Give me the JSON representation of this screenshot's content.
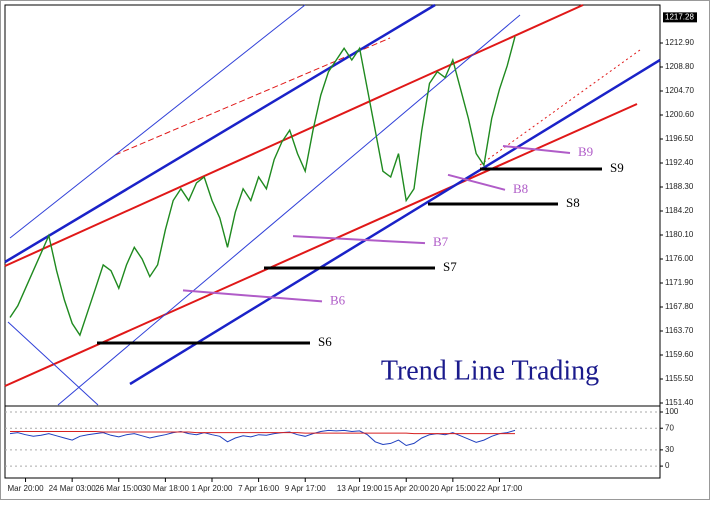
{
  "chart_data": [
    {
      "type": "line",
      "title": "Trend Line Trading",
      "ylim": [
        1151.06,
        1219.39
      ],
      "yticks": [
        {
          "value": 1151.4,
          "label": "1151.40"
        },
        {
          "value": 1155.5,
          "label": "1155.50"
        },
        {
          "value": 1159.6,
          "label": "1159.60"
        },
        {
          "value": 1163.7,
          "label": "1163.70"
        },
        {
          "value": 1167.8,
          "label": "1167.80"
        },
        {
          "value": 1171.9,
          "label": "1171.90"
        },
        {
          "value": 1176,
          "label": "1176.00"
        },
        {
          "value": 1180.1,
          "label": "1180.10"
        },
        {
          "value": 1184.2,
          "label": "1184.20"
        },
        {
          "value": 1188.3,
          "label": "1188.30"
        },
        {
          "value": 1192.4,
          "label": "1192.40"
        },
        {
          "value": 1196.5,
          "label": "1196.50"
        },
        {
          "value": 1200.6,
          "label": "1200.60"
        },
        {
          "value": 1204.7,
          "label": "1204.70"
        },
        {
          "value": 1208.8,
          "label": "1208.80"
        },
        {
          "value": 1212.9,
          "label": "1212.90"
        }
      ],
      "last_price": {
        "value": 1217.28,
        "label": "1217.28"
      },
      "categories": [
        null,
        null,
        "Mar 20:00",
        null,
        null,
        null,
        null,
        null,
        "24 Mar 03:00",
        null,
        null,
        null,
        null,
        null,
        "26 Mar 15:00",
        null,
        null,
        null,
        null,
        null,
        "30 Mar 18:00",
        null,
        null,
        null,
        null,
        null,
        "1 Apr 20:00",
        null,
        null,
        null,
        null,
        null,
        "7 Apr 16:00",
        null,
        null,
        null,
        null,
        null,
        "9 Apr 17:00",
        null,
        null,
        null,
        null,
        null,
        null,
        "13 Apr 19:00",
        null,
        null,
        null,
        null,
        null,
        "15 Apr 20:00",
        null,
        null,
        null,
        null,
        null,
        "20 Apr 15:00",
        null,
        null,
        null,
        null,
        null,
        "22 Apr 17:00",
        null,
        null
      ],
      "series": [
        {
          "color": "#1f8a1f",
          "values": [
            1166,
            1168,
            1171,
            1174,
            1177,
            1180,
            1174,
            1169,
            1165,
            1163,
            1167,
            1171,
            1175,
            1174,
            1171,
            1175,
            1178,
            1176,
            1173,
            1175,
            1181,
            1186,
            1188,
            1186,
            1189,
            1190,
            1186,
            1183,
            1178,
            1184,
            1188,
            1186,
            1190,
            1188,
            1193,
            1196,
            1198,
            1194,
            1191,
            1198,
            1204,
            1208,
            1210,
            1212,
            1210,
            1212,
            1205,
            1198,
            1191,
            1190,
            1194,
            1186,
            1188,
            1198,
            1206,
            1208,
            1207,
            1210,
            1205,
            1200,
            1194,
            1192,
            1200,
            1205,
            1209,
            1214
          ]
        }
      ],
      "annotations": [
        {
          "label": "S6",
          "value": 1161.65,
          "color": "#000000"
        },
        {
          "label": "S7",
          "value": 1174.46,
          "color": "#000000"
        },
        {
          "label": "S8",
          "value": 1185.4,
          "color": "#000000"
        },
        {
          "label": "S9",
          "value": 1191.38,
          "color": "#000000"
        },
        {
          "label": "B6",
          "value": 1169.7,
          "color": "#b05cc8"
        },
        {
          "label": "B7",
          "value": 1179.3,
          "color": "#b05cc8"
        },
        {
          "label": "B8",
          "value": 1189.1,
          "color": "#b05cc8"
        },
        {
          "label": "B9",
          "value": 1194.7,
          "color": "#b05cc8"
        }
      ]
    },
    {
      "type": "line",
      "ylim": [
        -22,
        107.4
      ],
      "yticks": [
        0,
        30,
        70,
        100
      ],
      "series": [
        {
          "color": "#1f3fbf",
          "values": [
            60,
            62,
            58,
            55,
            57,
            60,
            56,
            52,
            48,
            55,
            58,
            60,
            62,
            57,
            54,
            58,
            60,
            56,
            52,
            55,
            58,
            62,
            64,
            60,
            58,
            62,
            58,
            55,
            45,
            52,
            56,
            54,
            58,
            57,
            60,
            62,
            63,
            58,
            55,
            60,
            64,
            66,
            65,
            66,
            64,
            65,
            58,
            45,
            40,
            42,
            48,
            38,
            42,
            52,
            58,
            60,
            58,
            62,
            56,
            50,
            44,
            48,
            55,
            60,
            62,
            66
          ]
        },
        {
          "color": "#d62020",
          "values": [
            64,
            64,
            64,
            64,
            64,
            64,
            64,
            64,
            64,
            64,
            64,
            64,
            63,
            63,
            63,
            63,
            63,
            63,
            63,
            63,
            63,
            63,
            63,
            63,
            62,
            62,
            62,
            62,
            62,
            62,
            62,
            62,
            62,
            62,
            62,
            62,
            62,
            62,
            61,
            61,
            61,
            61,
            61,
            61,
            61,
            61,
            61,
            61,
            61,
            61,
            61,
            61,
            60,
            60,
            60,
            60,
            60,
            60,
            60,
            60,
            60,
            60,
            60,
            60,
            60,
            60
          ]
        }
      ]
    }
  ]
}
